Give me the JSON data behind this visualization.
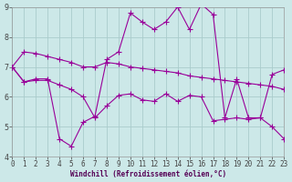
{
  "xlabel": "Windchill (Refroidissement éolien,°C)",
  "background_color": "#cce8e8",
  "grid_color": "#aacccc",
  "line_color": "#990099",
  "x_hours": [
    0,
    1,
    2,
    3,
    4,
    5,
    6,
    7,
    8,
    9,
    10,
    11,
    12,
    13,
    14,
    15,
    16,
    17,
    18,
    19,
    20,
    21,
    22,
    23
  ],
  "series1": [
    7.0,
    6.5,
    6.6,
    6.6,
    4.6,
    4.35,
    5.15,
    5.35,
    7.25,
    7.5,
    8.8,
    8.5,
    8.25,
    8.5,
    9.0,
    8.25,
    9.1,
    8.75,
    5.3,
    6.6,
    5.3,
    5.3,
    6.75,
    6.9
  ],
  "series2": [
    7.0,
    7.5,
    7.45,
    7.35,
    7.25,
    7.15,
    7.0,
    7.0,
    7.15,
    7.1,
    7.0,
    6.95,
    6.9,
    6.85,
    6.8,
    6.7,
    6.65,
    6.6,
    6.55,
    6.5,
    6.45,
    6.4,
    6.35,
    6.25
  ],
  "series3": [
    7.0,
    6.5,
    6.55,
    6.55,
    6.4,
    6.25,
    6.0,
    5.3,
    5.7,
    6.05,
    6.1,
    5.9,
    5.85,
    6.1,
    5.85,
    6.05,
    6.0,
    5.2,
    5.25,
    5.3,
    5.25,
    5.3,
    5.0,
    4.6
  ],
  "ylim": [
    4,
    9
  ],
  "xlim": [
    0,
    23
  ],
  "yticks": [
    4,
    5,
    6,
    7,
    8,
    9
  ],
  "xtick_labels": [
    "0",
    "1",
    "2",
    "3",
    "4",
    "5",
    "6",
    "7",
    "8",
    "9",
    "10",
    "11",
    "12",
    "13",
    "14",
    "15",
    "16",
    "17",
    "18",
    "19",
    "20",
    "21",
    "22",
    "23"
  ],
  "tick_fontsize": 5.5,
  "xlabel_fontsize": 5.5,
  "linewidth": 0.8,
  "markersize": 2.0
}
